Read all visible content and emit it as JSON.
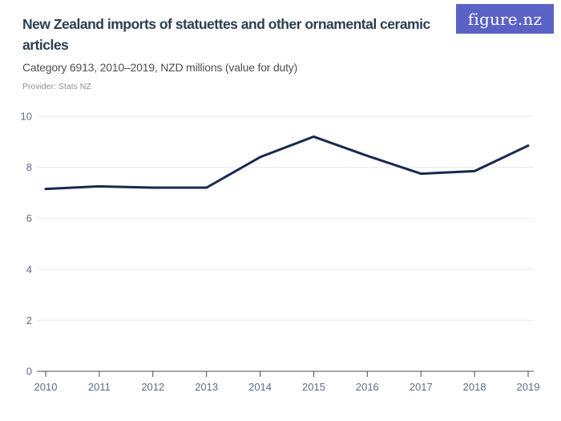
{
  "header": {
    "title": "New Zealand imports of statuettes and other ornamental ceramic articles",
    "subtitle": "Category 6913, 2010–2019, NZD millions (value for duty)",
    "provider": "Provider: Stats NZ",
    "logo_text": "figure.nz"
  },
  "colors": {
    "brand": "#5b62c5",
    "title": "#2c3e52",
    "subtitle": "#4f4f4f",
    "provider": "#8f8f8f",
    "line": "#192850",
    "gridline": "#e9e9e9",
    "axis": "#4d4d4d",
    "axis_label": "#5d6c83"
  },
  "chart_data": {
    "type": "line",
    "title": "New Zealand imports of statuettes and other ornamental ceramic articles",
    "subtitle": "Category 6913, 2010–2019, NZD millions (value for duty)",
    "unit": "NZD millions (value for duty)",
    "x": [
      2010,
      2011,
      2012,
      2013,
      2014,
      2015,
      2016,
      2017,
      2018,
      2019
    ],
    "values": [
      7.15,
      7.25,
      7.2,
      7.2,
      8.4,
      9.2,
      8.45,
      7.75,
      7.85,
      8.85
    ],
    "ylim": [
      0,
      10
    ],
    "yticks": [
      0,
      2,
      4,
      6,
      8,
      10
    ],
    "xticks": [
      "2010",
      "2011",
      "2012",
      "2013",
      "2014",
      "2015",
      "2016",
      "2017",
      "2018",
      "2019"
    ],
    "xlabel": "",
    "ylabel": "",
    "grid": true,
    "legend": false
  }
}
